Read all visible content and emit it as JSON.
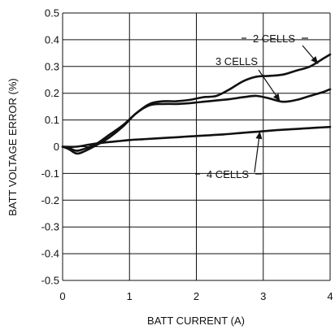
{
  "chart_data": {
    "type": "line",
    "title": "",
    "xlabel": "BATT CURRENT (A)",
    "ylabel": "BATT VOLTAGE ERROR (%)",
    "xlim": [
      0,
      4
    ],
    "ylim": [
      -0.5,
      0.5
    ],
    "xticks": [
      0,
      1,
      2,
      3,
      4
    ],
    "xtick_labels": [
      "0",
      "1",
      "2",
      "3",
      "4"
    ],
    "yticks": [
      0.5,
      0.4,
      0.3,
      0.2,
      0.1,
      0,
      -0.1,
      -0.2,
      -0.3,
      -0.4,
      -0.5
    ],
    "ytick_labels": [
      "0.5",
      "0.4",
      "0.3",
      "0.2",
      "0.1",
      "0",
      "-0.1",
      "-0.2",
      "-0.3",
      "-0.4",
      "-0.5"
    ],
    "grid": true,
    "series": [
      {
        "name": "2 CELLS",
        "x": [
          0,
          0.1,
          0.2,
          0.3,
          0.5,
          0.7,
          0.9,
          1.1,
          1.3,
          1.5,
          1.7,
          1.9,
          2.1,
          2.3,
          2.5,
          2.7,
          2.9,
          3.1,
          3.3,
          3.5,
          3.7,
          3.9,
          4.0
        ],
        "y": [
          0,
          -0.005,
          -0.015,
          -0.01,
          0.01,
          0.045,
          0.08,
          0.125,
          0.16,
          0.17,
          0.17,
          0.175,
          0.185,
          0.19,
          0.215,
          0.245,
          0.262,
          0.265,
          0.27,
          0.285,
          0.3,
          0.33,
          0.345
        ]
      },
      {
        "name": "3 CELLS",
        "x": [
          0,
          0.1,
          0.2,
          0.3,
          0.5,
          0.7,
          0.9,
          1.1,
          1.3,
          1.5,
          1.7,
          1.9,
          2.1,
          2.3,
          2.5,
          2.7,
          2.9,
          3.1,
          3.3,
          3.5,
          3.7,
          3.9,
          4.0
        ],
        "y": [
          0,
          -0.01,
          -0.025,
          -0.02,
          0.005,
          0.035,
          0.075,
          0.125,
          0.155,
          0.16,
          0.16,
          0.163,
          0.168,
          0.173,
          0.178,
          0.185,
          0.19,
          0.18,
          0.168,
          0.175,
          0.19,
          0.205,
          0.215
        ]
      },
      {
        "name": "4 CELLS",
        "x": [
          0,
          0.2,
          0.4,
          0.6,
          0.8,
          1.0,
          1.2,
          1.4,
          1.6,
          1.8,
          2.0,
          2.2,
          2.4,
          2.6,
          2.8,
          3.0,
          3.2,
          3.4,
          3.6,
          3.8,
          4.0
        ],
        "y": [
          0,
          0.0,
          0.008,
          0.015,
          0.02,
          0.025,
          0.028,
          0.031,
          0.034,
          0.037,
          0.04,
          0.043,
          0.046,
          0.05,
          0.054,
          0.058,
          0.062,
          0.065,
          0.068,
          0.071,
          0.074
        ]
      }
    ],
    "annotations": [
      {
        "text": "2 CELLS",
        "series": "2 CELLS",
        "target": [
          3.82,
          0.31
        ]
      },
      {
        "text": "3 CELLS",
        "series": "3 CELLS",
        "target": [
          3.25,
          0.17
        ]
      },
      {
        "text": "4 CELLS",
        "series": "4 CELLS",
        "target": [
          2.95,
          0.057
        ]
      }
    ]
  }
}
